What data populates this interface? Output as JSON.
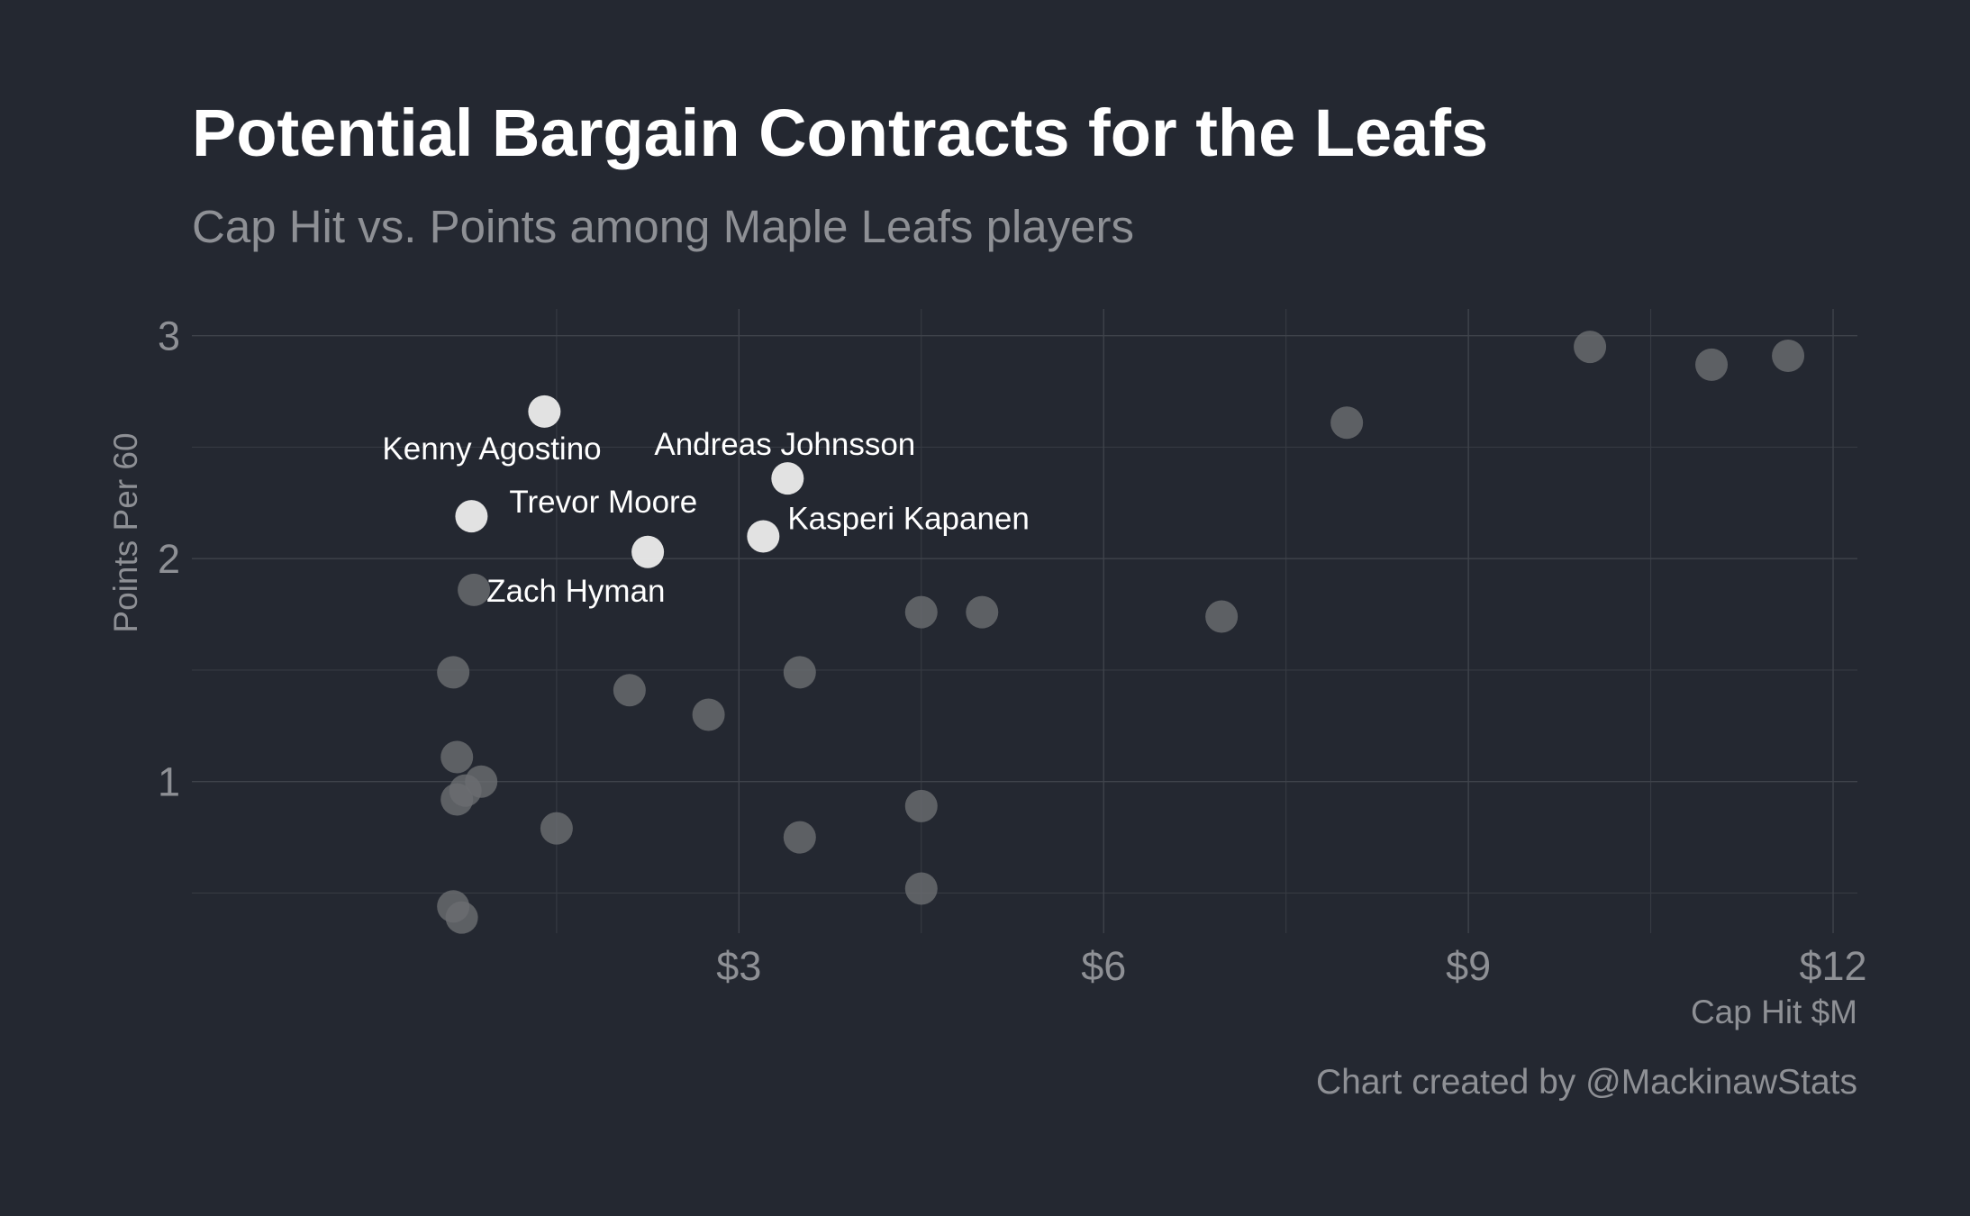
{
  "title": "Potential Bargain Contracts for the Leafs",
  "subtitle": "Cap Hit vs. Points among Maple Leafs players",
  "caption": "Chart created by @MackinawStats",
  "colors": {
    "background": "#242831",
    "highlight": "#e8e8e8",
    "other": "#6a6c70"
  },
  "chart_data": {
    "type": "scatter",
    "xlabel": "Cap Hit $M",
    "ylabel": "Points Per 60",
    "xlim": [
      -1.5,
      12.2
    ],
    "ylim": [
      0.32,
      3.12
    ],
    "x_major_ticks": [
      3,
      6,
      9,
      12
    ],
    "x_tick_labels": [
      "$3",
      "$6",
      "$9",
      "$12"
    ],
    "x_minor_ticks": [
      1.5,
      4.5,
      7.5,
      10.5
    ],
    "y_major_ticks": [
      1,
      2,
      3
    ],
    "y_tick_labels": [
      "1",
      "2",
      "3"
    ],
    "y_minor_ticks": [
      0.5,
      1.5,
      2.5
    ],
    "grid": true,
    "legend": "none",
    "series": [
      {
        "highlighted": true,
        "points": [
          {
            "x": 1.4,
            "y": 2.66,
            "label": "Kenny Agostino"
          },
          {
            "x": 0.8,
            "y": 2.19,
            "label": "Trevor Moore"
          },
          {
            "x": 2.25,
            "y": 2.03,
            "label": ""
          },
          {
            "x": 3.2,
            "y": 2.1,
            "label": "Kasperi Kapanen"
          },
          {
            "x": 3.4,
            "y": 2.36,
            "label": "Andreas Johnsson"
          }
        ]
      },
      {
        "highlighted": false,
        "points": [
          {
            "x": 0.82,
            "y": 1.86,
            "label": "Zach Hyman"
          },
          {
            "x": 0.65,
            "y": 1.49,
            "label": ""
          },
          {
            "x": 0.68,
            "y": 1.11,
            "label": ""
          },
          {
            "x": 0.88,
            "y": 1.0,
            "label": ""
          },
          {
            "x": 0.75,
            "y": 0.96,
            "label": ""
          },
          {
            "x": 0.68,
            "y": 0.92,
            "label": ""
          },
          {
            "x": 0.65,
            "y": 0.44,
            "label": ""
          },
          {
            "x": 0.72,
            "y": 0.39,
            "label": ""
          },
          {
            "x": 1.5,
            "y": 0.79,
            "label": ""
          },
          {
            "x": 2.1,
            "y": 1.41,
            "label": ""
          },
          {
            "x": 2.75,
            "y": 1.3,
            "label": ""
          },
          {
            "x": 3.5,
            "y": 1.49,
            "label": ""
          },
          {
            "x": 3.5,
            "y": 0.75,
            "label": ""
          },
          {
            "x": 4.5,
            "y": 1.76,
            "label": ""
          },
          {
            "x": 4.5,
            "y": 0.89,
            "label": ""
          },
          {
            "x": 4.5,
            "y": 0.52,
            "label": ""
          },
          {
            "x": 5.0,
            "y": 1.76,
            "label": ""
          },
          {
            "x": 6.97,
            "y": 1.74,
            "label": ""
          },
          {
            "x": 8.0,
            "y": 2.61,
            "label": ""
          },
          {
            "x": 10.0,
            "y": 2.95,
            "label": ""
          },
          {
            "x": 11.0,
            "y": 2.87,
            "label": ""
          },
          {
            "x": 11.63,
            "y": 2.91,
            "label": ""
          }
        ]
      }
    ]
  }
}
